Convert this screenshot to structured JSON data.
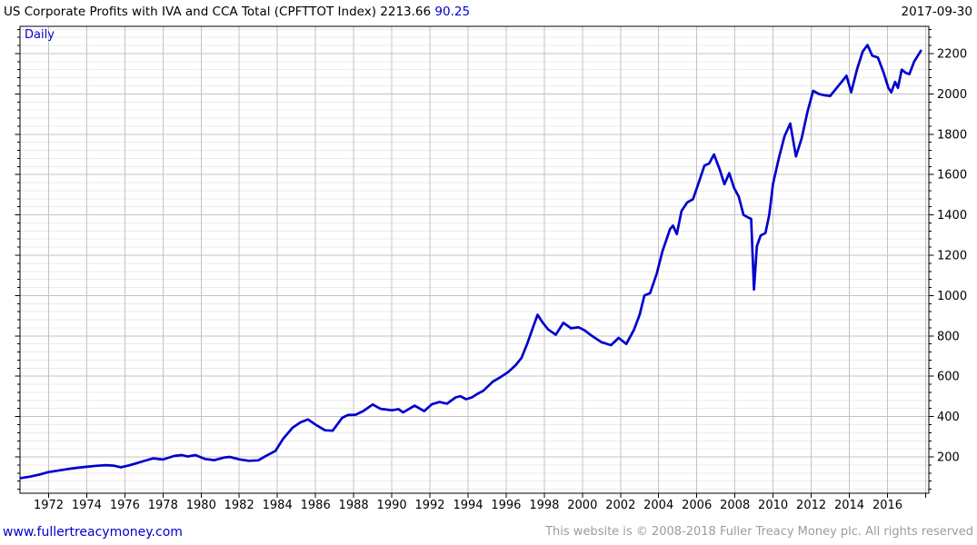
{
  "header": {
    "title": "US Corporate Profits with IVA and CCA Total (CPFTTOT Index)",
    "last_value": "2213.66",
    "change_value": "90.25",
    "date": "2017-09-30"
  },
  "chart": {
    "frequency_label": "Daily",
    "line_color": "#0000cd",
    "accent_color": "#0000cd",
    "grid_minor_color": "#ebebeb",
    "grid_major_color": "#c3c3c3",
    "axis_color": "#000000"
  },
  "chart_data": {
    "type": "line",
    "title": "US Corporate Profits with IVA and CCA Total (CPFTTOT Index)",
    "legend": "Daily",
    "x_range": [
      1970.5,
      2018.17
    ],
    "y_range": [
      20,
      2335
    ],
    "y_ticks": [
      200,
      400,
      600,
      800,
      1000,
      1200,
      1400,
      1600,
      1800,
      2000,
      2200
    ],
    "y_minor_step": 40,
    "x_ticks": [
      1972,
      1974,
      1976,
      1978,
      1980,
      1982,
      1984,
      1986,
      1988,
      1990,
      1992,
      1994,
      1996,
      1998,
      2000,
      2002,
      2004,
      2006,
      2008,
      2010,
      2012,
      2014,
      2016
    ],
    "x_grid_years": [
      1972,
      1974,
      1976,
      1978,
      1980,
      1982,
      1984,
      1986,
      1988,
      1990,
      1992,
      1994,
      1996,
      1998,
      2000,
      2002,
      2004,
      2006,
      2008,
      2010,
      2012,
      2014,
      2016,
      2018
    ],
    "grid": true,
    "axis_side": "right",
    "series": [
      {
        "name": "CPFTTOT Index",
        "color": "#0000cd",
        "points": [
          [
            1970.55,
            95
          ],
          [
            1971,
            102
          ],
          [
            1971.5,
            112
          ],
          [
            1972,
            125
          ],
          [
            1972.5,
            132
          ],
          [
            1973,
            140
          ],
          [
            1973.5,
            146
          ],
          [
            1974,
            151
          ],
          [
            1974.5,
            156
          ],
          [
            1975,
            159
          ],
          [
            1975.4,
            157
          ],
          [
            1975.8,
            149
          ],
          [
            1976.2,
            158
          ],
          [
            1976.6,
            168
          ],
          [
            1977,
            180
          ],
          [
            1977.5,
            193
          ],
          [
            1978,
            187
          ],
          [
            1978.6,
            205
          ],
          [
            1979,
            209
          ],
          [
            1979.3,
            202
          ],
          [
            1979.7,
            209
          ],
          [
            1980.2,
            190
          ],
          [
            1980.7,
            184
          ],
          [
            1981.2,
            197
          ],
          [
            1981.5,
            200
          ],
          [
            1982,
            188
          ],
          [
            1982.5,
            181
          ],
          [
            1983,
            183
          ],
          [
            1983.4,
            205
          ],
          [
            1983.9,
            230
          ],
          [
            1984.3,
            290
          ],
          [
            1984.8,
            345
          ],
          [
            1985.2,
            371
          ],
          [
            1985.6,
            386
          ],
          [
            1986,
            360
          ],
          [
            1986.5,
            332
          ],
          [
            1986.9,
            330
          ],
          [
            1987.4,
            394
          ],
          [
            1987.7,
            408
          ],
          [
            1988.1,
            409
          ],
          [
            1988.5,
            427
          ],
          [
            1989,
            460
          ],
          [
            1989.4,
            439
          ],
          [
            1990,
            431
          ],
          [
            1990.35,
            437
          ],
          [
            1990.6,
            421
          ],
          [
            1991.2,
            454
          ],
          [
            1991.7,
            427
          ],
          [
            1992.1,
            461
          ],
          [
            1992.5,
            472
          ],
          [
            1992.9,
            464
          ],
          [
            1993.35,
            495
          ],
          [
            1993.6,
            501
          ],
          [
            1993.9,
            486
          ],
          [
            1994.2,
            495
          ],
          [
            1994.5,
            513
          ],
          [
            1994.8,
            528
          ],
          [
            1995.3,
            573
          ],
          [
            1995.7,
            595
          ],
          [
            1996.1,
            620
          ],
          [
            1996.5,
            655
          ],
          [
            1996.8,
            690
          ],
          [
            1997.1,
            760
          ],
          [
            1997.4,
            840
          ],
          [
            1997.65,
            905
          ],
          [
            1997.9,
            868
          ],
          [
            1998.2,
            832
          ],
          [
            1998.6,
            806
          ],
          [
            1999,
            865
          ],
          [
            1999.4,
            838
          ],
          [
            1999.8,
            843
          ],
          [
            2000.1,
            829
          ],
          [
            2000.5,
            800
          ],
          [
            2001,
            769
          ],
          [
            2001.5,
            754
          ],
          [
            2001.9,
            790
          ],
          [
            2002.3,
            760
          ],
          [
            2002.7,
            830
          ],
          [
            2003,
            905
          ],
          [
            2003.25,
            1000
          ],
          [
            2003.55,
            1012
          ],
          [
            2003.9,
            1110
          ],
          [
            2004.2,
            1220
          ],
          [
            2004.6,
            1330
          ],
          [
            2004.75,
            1347
          ],
          [
            2004.95,
            1305
          ],
          [
            2005.2,
            1420
          ],
          [
            2005.5,
            1462
          ],
          [
            2005.8,
            1478
          ],
          [
            2006.1,
            1560
          ],
          [
            2006.4,
            1645
          ],
          [
            2006.65,
            1655
          ],
          [
            2006.9,
            1700
          ],
          [
            2007.2,
            1625
          ],
          [
            2007.45,
            1552
          ],
          [
            2007.7,
            1607
          ],
          [
            2007.95,
            1535
          ],
          [
            2008.2,
            1490
          ],
          [
            2008.45,
            1400
          ],
          [
            2008.7,
            1387
          ],
          [
            2008.85,
            1380
          ],
          [
            2009,
            1030
          ],
          [
            2009.15,
            1245
          ],
          [
            2009.35,
            1298
          ],
          [
            2009.6,
            1310
          ],
          [
            2009.8,
            1400
          ],
          [
            2010,
            1555
          ],
          [
            2010.3,
            1680
          ],
          [
            2010.6,
            1790
          ],
          [
            2010.9,
            1853
          ],
          [
            2011.2,
            1690
          ],
          [
            2011.5,
            1780
          ],
          [
            2011.8,
            1910
          ],
          [
            2012.1,
            2015
          ],
          [
            2012.4,
            2000
          ],
          [
            2012.7,
            1993
          ],
          [
            2013,
            1990
          ],
          [
            2013.3,
            2025
          ],
          [
            2013.6,
            2060
          ],
          [
            2013.85,
            2090
          ],
          [
            2014.1,
            2008
          ],
          [
            2014.4,
            2120
          ],
          [
            2014.7,
            2210
          ],
          [
            2014.95,
            2242
          ],
          [
            2015.2,
            2190
          ],
          [
            2015.5,
            2180
          ],
          [
            2015.8,
            2105
          ],
          [
            2016.05,
            2030
          ],
          [
            2016.2,
            2008
          ],
          [
            2016.4,
            2060
          ],
          [
            2016.55,
            2030
          ],
          [
            2016.75,
            2120
          ],
          [
            2016.95,
            2105
          ],
          [
            2017.15,
            2098
          ],
          [
            2017.4,
            2160
          ],
          [
            2017.6,
            2190
          ],
          [
            2017.75,
            2214
          ]
        ]
      }
    ]
  },
  "footer": {
    "site_link": "www.fullertreacymoney.com",
    "copyright": "This website is © 2008-2018 Fuller Treacy Money plc. All rights reserved"
  }
}
